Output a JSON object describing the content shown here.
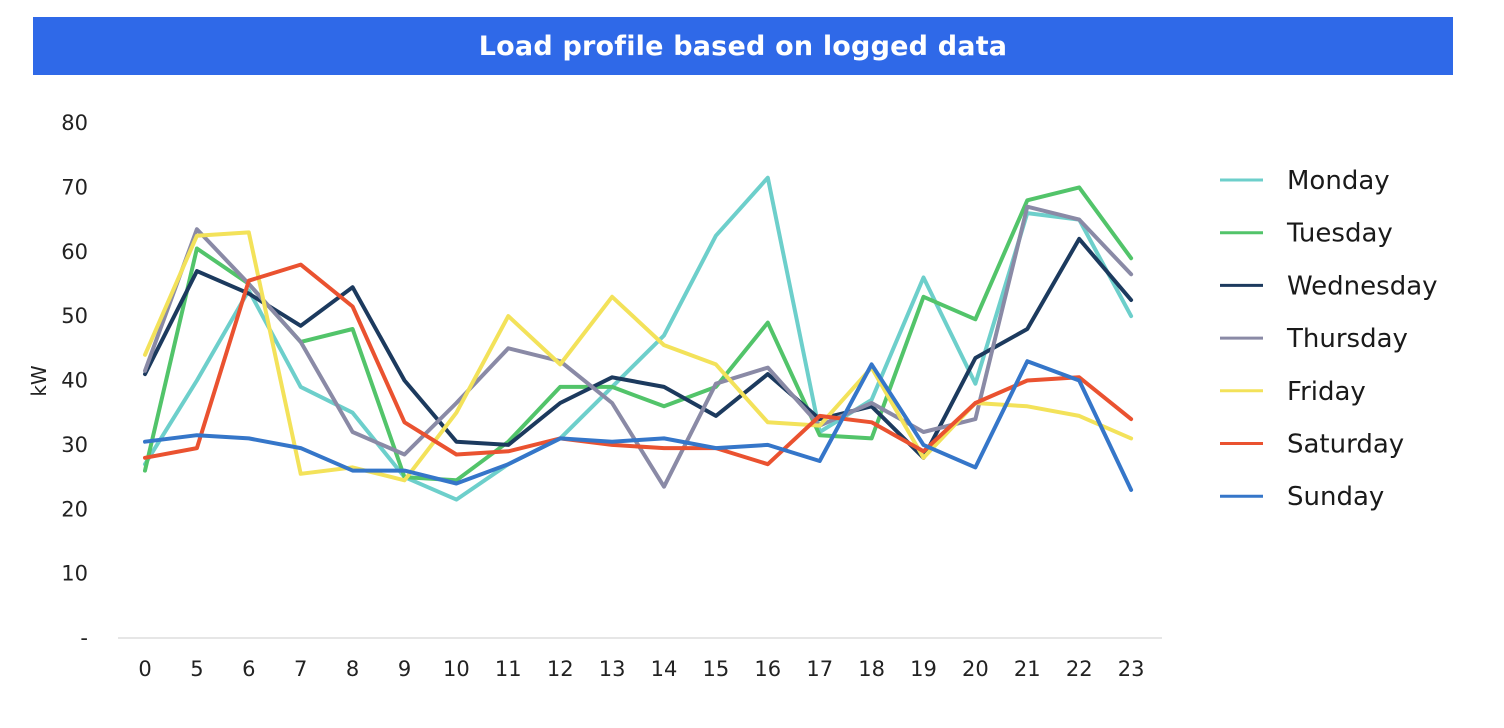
{
  "chart_data": {
    "type": "line",
    "title": "Load profile based on logged data",
    "xlabel": "",
    "ylabel": "kW",
    "ylim": [
      0,
      80
    ],
    "y_ticks": [
      0,
      10,
      20,
      30,
      40,
      50,
      60,
      70,
      80
    ],
    "y_tick_labels": [
      "-",
      "10",
      "20",
      "30",
      "40",
      "50",
      "60",
      "70",
      "80"
    ],
    "categories": [
      "0",
      "5",
      "6",
      "7",
      "8",
      "9",
      "10",
      "11",
      "12",
      "13",
      "14",
      "15",
      "16",
      "17",
      "18",
      "19",
      "20",
      "21",
      "22",
      "23"
    ],
    "grid": false,
    "legend_position": "right",
    "series": [
      {
        "name": "Monday",
        "color": "#6dcfcb",
        "values": [
          27,
          40,
          54,
          39,
          35,
          25,
          21.5,
          27,
          31,
          39,
          47,
          62.5,
          71.5,
          32,
          37,
          56,
          39.5,
          66,
          65,
          50
        ]
      },
      {
        "name": "Tuesday",
        "color": "#52c46a",
        "values": [
          26,
          60.5,
          55,
          46,
          48,
          25,
          24.5,
          30.5,
          39,
          39,
          36,
          39,
          49,
          31.5,
          31,
          53,
          49.5,
          68,
          70,
          59
        ]
      },
      {
        "name": "Wednesday",
        "color": "#1c3a5e",
        "values": [
          41,
          57,
          53.5,
          48.5,
          54.5,
          40,
          30.5,
          30,
          36.5,
          40.5,
          39,
          34.5,
          41,
          34,
          36,
          28,
          43.5,
          48,
          62,
          52.5
        ]
      },
      {
        "name": "Thursday",
        "color": "#8a8aa6",
        "values": [
          41.5,
          63.5,
          55,
          46,
          32,
          28.5,
          36.5,
          45,
          43,
          36.5,
          23.5,
          39.5,
          42,
          33,
          36.5,
          32,
          34,
          67,
          65,
          56.5
        ]
      },
      {
        "name": "Friday",
        "color": "#f3e25a",
        "values": [
          44,
          62.5,
          63,
          25.5,
          26.5,
          24.5,
          35,
          50,
          42.5,
          53,
          45.5,
          42.5,
          33.5,
          33,
          42,
          28,
          36.5,
          36,
          34.5,
          31
        ]
      },
      {
        "name": "Saturday",
        "color": "#ea5230",
        "values": [
          28,
          29.5,
          55.5,
          58,
          51.5,
          33.5,
          28.5,
          29,
          31,
          30,
          29.5,
          29.5,
          27,
          34.5,
          33.5,
          29,
          36.5,
          40,
          40.5,
          34
        ]
      },
      {
        "name": "Sunday",
        "color": "#3576c9",
        "values": [
          30.5,
          31.5,
          31,
          29.5,
          26,
          26,
          24,
          27,
          31,
          30.5,
          31,
          29.5,
          30,
          27.5,
          42.5,
          30,
          26.5,
          43,
          40,
          23
        ]
      }
    ]
  }
}
